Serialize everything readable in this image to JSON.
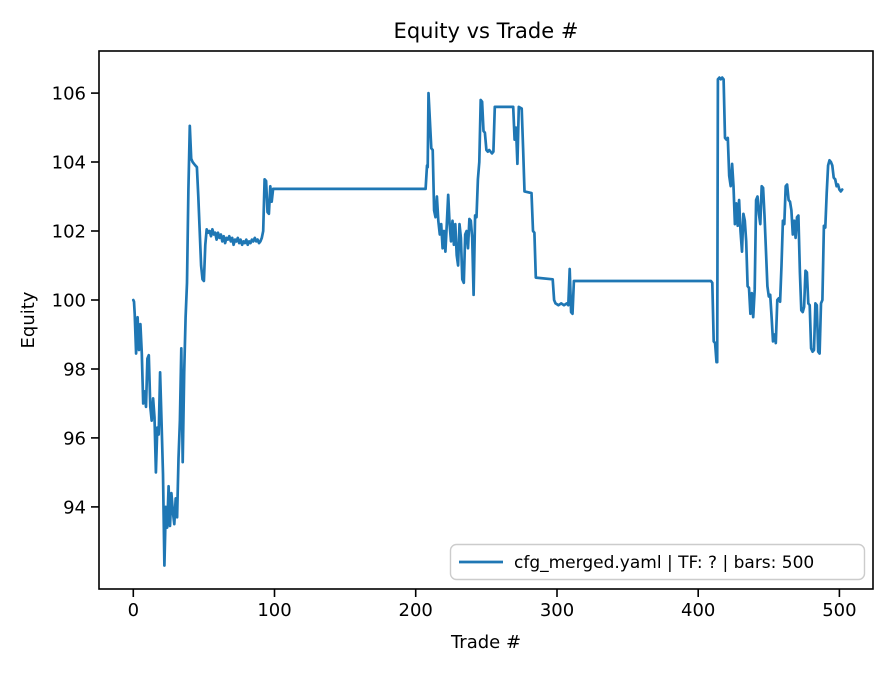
{
  "figure": {
    "background": "#ffffff"
  },
  "colors": {
    "line": "#1f77b4",
    "spine": "#000000",
    "text": "#000000",
    "legend_border": "#cccccc",
    "legend_bg": "#ffffff"
  },
  "chart_data": {
    "type": "line",
    "title": "Equity vs Trade #",
    "xlabel": "Trade #",
    "ylabel": "Equity",
    "grid": false,
    "legend": {
      "position": "lower right",
      "entries": [
        {
          "label": "cfg_merged.yaml | TF: ? | bars: 500",
          "color": "#1f77b4"
        }
      ]
    },
    "xticks": [
      0,
      100,
      200,
      300,
      400,
      500
    ],
    "yticks": [
      94,
      96,
      98,
      100,
      102,
      104,
      106
    ],
    "xlim": [
      -24.3,
      523.8
    ],
    "ylim": [
      91.62,
      107.22
    ],
    "series": [
      {
        "name": "cfg_merged.yaml | TF: ? | bars: 500",
        "points": [
          [
            0,
            100.0
          ],
          [
            0.5,
            99.95
          ],
          [
            1,
            99.6
          ],
          [
            2,
            98.45
          ],
          [
            3,
            99.5
          ],
          [
            4,
            98.55
          ],
          [
            5,
            99.3
          ],
          [
            6,
            98.45
          ],
          [
            7,
            97.0
          ],
          [
            8,
            97.35
          ],
          [
            9,
            96.9
          ],
          [
            10,
            98.3
          ],
          [
            11,
            98.4
          ],
          [
            12,
            96.9
          ],
          [
            13,
            96.5
          ],
          [
            14,
            97.15
          ],
          [
            15,
            96.6
          ],
          [
            16,
            95.0
          ],
          [
            17,
            96.3
          ],
          [
            18,
            96.1
          ],
          [
            19,
            97.9
          ],
          [
            20,
            96.4
          ],
          [
            21,
            94.95
          ],
          [
            22,
            92.3
          ],
          [
            23,
            94.0
          ],
          [
            24,
            93.4
          ],
          [
            25,
            94.6
          ],
          [
            26,
            93.45
          ],
          [
            27,
            94.4
          ],
          [
            28,
            93.85
          ],
          [
            29,
            93.5
          ],
          [
            30,
            94.25
          ],
          [
            31,
            93.7
          ],
          [
            32,
            95.4
          ],
          [
            33,
            96.5
          ],
          [
            34,
            98.6
          ],
          [
            35,
            95.3
          ],
          [
            36,
            97.9
          ],
          [
            37,
            99.5
          ],
          [
            38,
            100.5
          ],
          [
            39,
            103.2
          ],
          [
            40,
            105.05
          ],
          [
            41,
            104.1
          ],
          [
            42,
            104.0
          ],
          [
            43,
            103.95
          ],
          [
            44,
            103.9
          ],
          [
            45,
            103.85
          ],
          [
            46,
            103.0
          ],
          [
            47,
            102.0
          ],
          [
            48,
            101.0
          ],
          [
            49,
            100.6
          ],
          [
            50,
            100.55
          ],
          [
            51,
            101.6
          ],
          [
            52,
            102.05
          ],
          [
            53,
            101.95
          ],
          [
            54,
            102.0
          ],
          [
            55,
            101.85
          ],
          [
            56,
            102.05
          ],
          [
            57,
            101.9
          ],
          [
            58,
            101.95
          ],
          [
            59,
            101.75
          ],
          [
            60,
            101.95
          ],
          [
            61,
            101.8
          ],
          [
            62,
            101.9
          ],
          [
            63,
            101.7
          ],
          [
            64,
            101.85
          ],
          [
            65,
            101.65
          ],
          [
            66,
            101.8
          ],
          [
            67,
            101.75
          ],
          [
            68,
            101.85
          ],
          [
            69,
            101.7
          ],
          [
            70,
            101.8
          ],
          [
            71,
            101.6
          ],
          [
            72,
            101.75
          ],
          [
            73,
            101.7
          ],
          [
            74,
            101.8
          ],
          [
            75,
            101.65
          ],
          [
            76,
            101.75
          ],
          [
            77,
            101.6
          ],
          [
            78,
            101.7
          ],
          [
            79,
            101.65
          ],
          [
            80,
            101.75
          ],
          [
            81,
            101.6
          ],
          [
            82,
            101.7
          ],
          [
            83,
            101.65
          ],
          [
            84,
            101.75
          ],
          [
            85,
            101.7
          ],
          [
            86,
            101.8
          ],
          [
            87,
            101.7
          ],
          [
            88,
            101.75
          ],
          [
            89,
            101.65
          ],
          [
            90,
            101.7
          ],
          [
            91,
            101.8
          ],
          [
            92,
            102.0
          ],
          [
            93,
            103.5
          ],
          [
            94,
            103.45
          ],
          [
            95,
            102.55
          ],
          [
            96,
            102.5
          ],
          [
            97,
            103.3
          ],
          [
            98,
            102.85
          ],
          [
            99,
            103.22
          ],
          [
            207,
            103.22
          ],
          [
            208,
            103.9
          ],
          [
            208.5,
            103.85
          ],
          [
            209,
            106.0
          ],
          [
            210,
            105.2
          ],
          [
            211,
            104.4
          ],
          [
            212,
            104.35
          ],
          [
            213,
            102.6
          ],
          [
            214,
            102.4
          ],
          [
            215,
            103.0
          ],
          [
            216,
            102.3
          ],
          [
            217,
            101.9
          ],
          [
            218,
            102.2
          ],
          [
            219,
            101.5
          ],
          [
            220,
            102.0
          ],
          [
            221,
            101.4
          ],
          [
            222,
            102.2
          ],
          [
            223,
            103.05
          ],
          [
            224,
            102.2
          ],
          [
            225,
            101.7
          ],
          [
            226,
            102.3
          ],
          [
            227,
            101.6
          ],
          [
            228,
            102.2
          ],
          [
            229,
            101.3
          ],
          [
            230,
            101.0
          ],
          [
            231,
            102.2
          ],
          [
            232,
            101.8
          ],
          [
            233,
            100.6
          ],
          [
            234,
            100.5
          ],
          [
            235,
            101.9
          ],
          [
            236,
            102.0
          ],
          [
            237,
            101.5
          ],
          [
            238,
            102.35
          ],
          [
            239,
            102.3
          ],
          [
            240,
            101.8
          ],
          [
            241,
            100.15
          ],
          [
            242,
            102.45
          ],
          [
            243,
            102.4
          ],
          [
            244,
            103.5
          ],
          [
            245,
            104.0
          ],
          [
            246,
            105.8
          ],
          [
            247,
            105.75
          ],
          [
            248,
            104.9
          ],
          [
            249,
            104.85
          ],
          [
            250,
            104.35
          ],
          [
            251,
            104.3
          ],
          [
            252,
            104.35
          ],
          [
            253,
            104.3
          ],
          [
            254,
            104.25
          ],
          [
            255,
            104.3
          ],
          [
            256,
            105.6
          ],
          [
            269,
            105.6
          ],
          [
            270,
            104.65
          ],
          [
            271,
            105.0
          ],
          [
            272,
            103.95
          ],
          [
            273,
            105.6
          ],
          [
            275,
            105.55
          ],
          [
            276,
            104.4
          ],
          [
            277,
            103.15
          ],
          [
            282,
            103.1
          ],
          [
            283,
            102.0
          ],
          [
            284,
            101.95
          ],
          [
            285,
            100.65
          ],
          [
            297,
            100.6
          ],
          [
            298,
            100.0
          ],
          [
            299,
            99.9
          ],
          [
            301,
            99.85
          ],
          [
            303,
            99.9
          ],
          [
            305,
            99.85
          ],
          [
            307,
            99.9
          ],
          [
            308,
            99.85
          ],
          [
            309,
            100.9
          ],
          [
            310,
            99.65
          ],
          [
            311,
            99.6
          ],
          [
            312,
            100.55
          ],
          [
            409,
            100.55
          ],
          [
            410,
            100.5
          ],
          [
            411,
            98.8
          ],
          [
            412,
            98.75
          ],
          [
            413,
            98.2
          ],
          [
            413.5,
            98.2
          ],
          [
            414,
            106.4
          ],
          [
            415,
            106.45
          ],
          [
            416,
            106.4
          ],
          [
            417,
            106.45
          ],
          [
            418,
            106.4
          ],
          [
            419,
            104.7
          ],
          [
            420,
            104.65
          ],
          [
            421,
            104.7
          ],
          [
            422,
            103.6
          ],
          [
            423,
            103.3
          ],
          [
            424,
            103.95
          ],
          [
            425,
            103.3
          ],
          [
            426,
            102.2
          ],
          [
            427,
            102.8
          ],
          [
            428,
            102.15
          ],
          [
            429,
            102.9
          ],
          [
            430,
            102.0
          ],
          [
            431,
            101.4
          ],
          [
            432,
            102.5
          ],
          [
            433,
            102.3
          ],
          [
            434,
            101.7
          ],
          [
            435,
            100.4
          ],
          [
            436,
            100.35
          ],
          [
            437,
            99.6
          ],
          [
            438,
            100.2
          ],
          [
            439,
            99.5
          ],
          [
            440,
            100.3
          ],
          [
            441,
            102.9
          ],
          [
            442,
            103.0
          ],
          [
            443,
            102.5
          ],
          [
            444,
            102.2
          ],
          [
            445,
            103.3
          ],
          [
            446,
            103.25
          ],
          [
            447,
            102.45
          ],
          [
            448,
            101.4
          ],
          [
            449,
            100.4
          ],
          [
            450,
            100.1
          ],
          [
            451,
            100.15
          ],
          [
            452,
            99.5
          ],
          [
            453,
            98.8
          ],
          [
            454,
            99.0
          ],
          [
            455,
            98.75
          ],
          [
            456,
            100.0
          ],
          [
            457,
            100.05
          ],
          [
            458,
            99.95
          ],
          [
            459,
            101.0
          ],
          [
            460,
            102.3
          ],
          [
            461,
            102.2
          ],
          [
            462,
            103.3
          ],
          [
            463,
            103.35
          ],
          [
            464,
            102.9
          ],
          [
            465,
            102.85
          ],
          [
            466,
            102.6
          ],
          [
            467,
            101.9
          ],
          [
            468,
            102.3
          ],
          [
            469,
            101.8
          ],
          [
            470,
            102.4
          ],
          [
            471,
            102.45
          ],
          [
            472,
            100.8
          ],
          [
            473,
            99.7
          ],
          [
            474,
            99.65
          ],
          [
            475,
            99.8
          ],
          [
            476,
            100.85
          ],
          [
            477,
            100.8
          ],
          [
            478,
            99.9
          ],
          [
            479,
            99.85
          ],
          [
            480,
            98.6
          ],
          [
            481,
            98.5
          ],
          [
            482,
            98.55
          ],
          [
            483,
            99.9
          ],
          [
            484,
            99.85
          ],
          [
            485,
            98.5
          ],
          [
            486,
            98.45
          ],
          [
            487,
            99.9
          ],
          [
            488,
            100.0
          ],
          [
            489,
            102.15
          ],
          [
            490,
            102.1
          ],
          [
            491,
            103.1
          ],
          [
            492,
            103.9
          ],
          [
            493,
            104.05
          ],
          [
            494,
            104.0
          ],
          [
            495,
            103.9
          ],
          [
            496,
            103.55
          ],
          [
            497,
            103.5
          ],
          [
            498,
            103.3
          ],
          [
            499,
            103.35
          ],
          [
            500,
            103.2
          ],
          [
            501,
            103.15
          ],
          [
            502,
            103.2
          ]
        ]
      }
    ]
  }
}
